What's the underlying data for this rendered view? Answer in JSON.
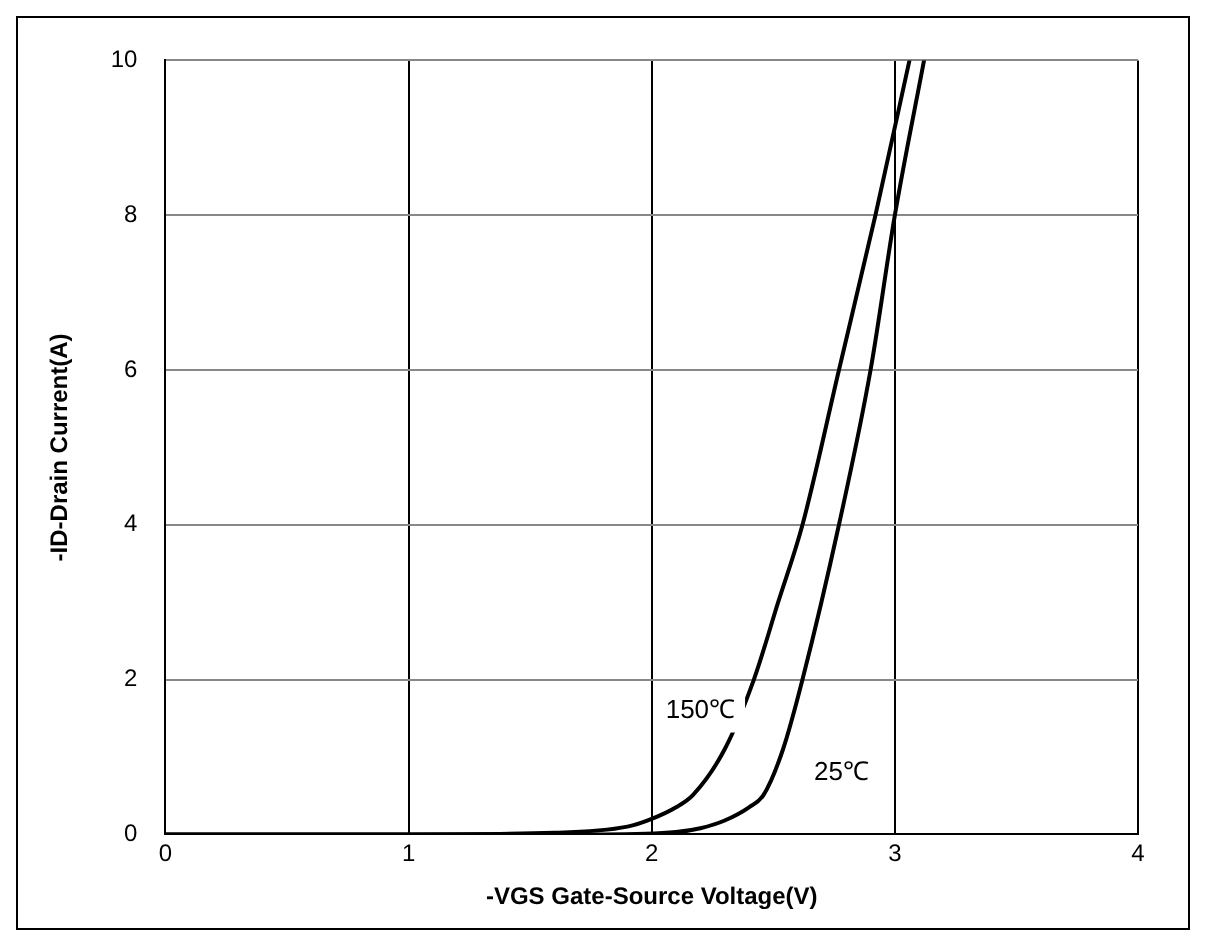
{
  "chart_data": {
    "type": "line",
    "xlabel": "-VGS Gate-Source Voltage(V)",
    "ylabel": "-ID-Drain Current(A)",
    "xlim": [
      0,
      4
    ],
    "xticks": [
      0,
      1,
      2,
      3,
      4
    ],
    "ylim": [
      0,
      10
    ],
    "yticks": [
      0,
      2,
      4,
      6,
      8,
      10
    ],
    "grid": true,
    "legend": false,
    "marker": "none",
    "line_style": "solid",
    "series": [
      {
        "color": "#000000",
        "x": [
          0,
          1,
          1.6,
          1.9,
          2,
          2.1,
          2.17,
          2.3,
          2.42,
          2.52,
          2.62,
          2.77,
          2.92,
          3.06
        ],
        "values": [
          0,
          0,
          0.02,
          0.1,
          0.2,
          0.35,
          0.51,
          1.1,
          2,
          3,
          4,
          6,
          8,
          10
        ]
      },
      {
        "color": "#000000",
        "x": [
          0,
          1,
          1.8,
          2.1,
          2.2,
          2.3,
          2.4,
          2.46,
          2.54,
          2.62,
          2.77,
          2.9,
          3,
          3.12
        ],
        "values": [
          0,
          0,
          0,
          0.03,
          0.08,
          0.18,
          0.35,
          0.51,
          1.1,
          2,
          4,
          6,
          8,
          10
        ]
      }
    ],
    "annotations": [
      "150℃",
      "25℃"
    ]
  }
}
